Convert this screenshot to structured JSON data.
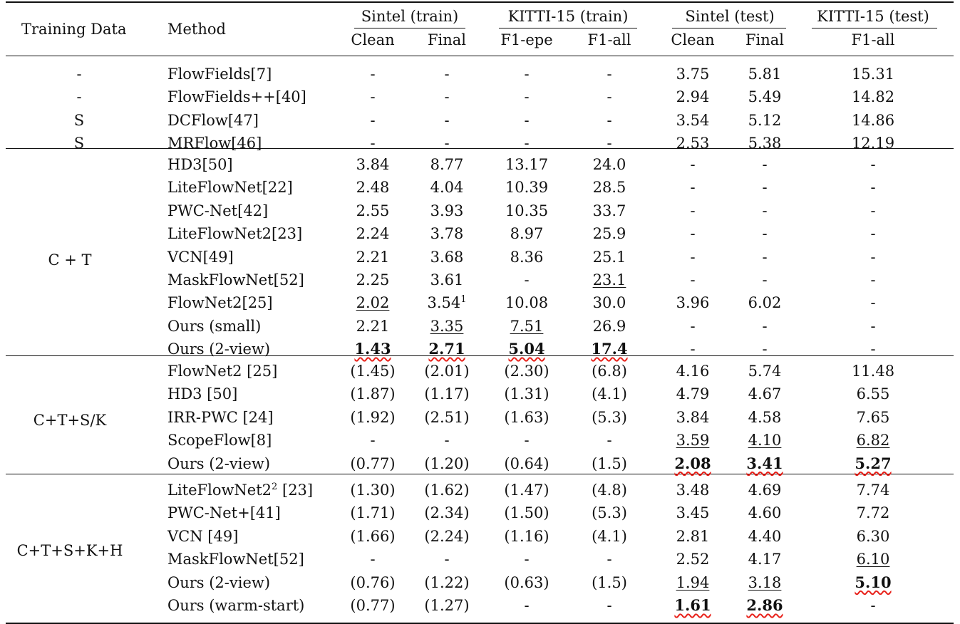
{
  "header": {
    "training_data": "Training Data",
    "method": "Method",
    "groups": [
      {
        "label": "Sintel (train)",
        "subs": [
          "Clean",
          "Final"
        ]
      },
      {
        "label": "KITTI-15 (train)",
        "subs": [
          "F1-epe",
          "F1-all"
        ]
      },
      {
        "label": "Sintel (test)",
        "subs": [
          "Clean",
          "Final"
        ]
      },
      {
        "label": "KITTI-15 (test)",
        "subs": [
          "F1-all"
        ]
      }
    ]
  },
  "sections": [
    {
      "rows": [
        {
          "td": "-",
          "method": "FlowFields[7]",
          "v": [
            "-",
            "-",
            "-",
            "-",
            "3.75",
            "5.81",
            "15.31"
          ]
        },
        {
          "td": "-",
          "method": "FlowFields++[40]",
          "v": [
            "-",
            "-",
            "-",
            "-",
            "2.94",
            "5.49",
            "14.82"
          ]
        },
        {
          "td": "S",
          "method": "DCFlow[47]",
          "v": [
            "-",
            "-",
            "-",
            "-",
            "3.54",
            "5.12",
            "14.86"
          ]
        },
        {
          "td": "S",
          "method": "MRFlow[46]",
          "v": [
            "-",
            "-",
            "-",
            "-",
            "2.53",
            "5.38",
            "12.19"
          ]
        }
      ]
    },
    {
      "label": "C + T",
      "rows": [
        {
          "method": "HD3[50]",
          "v": [
            "3.84",
            "8.77",
            "13.17",
            "24.0",
            "-",
            "-",
            "-"
          ]
        },
        {
          "method": "LiteFlowNet[22]",
          "v": [
            "2.48",
            "4.04",
            "10.39",
            "28.5",
            "-",
            "-",
            "-"
          ]
        },
        {
          "method": "PWC-Net[42]",
          "v": [
            "2.55",
            "3.93",
            "10.35",
            "33.7",
            "-",
            "-",
            "-"
          ]
        },
        {
          "method": "LiteFlowNet2[23]",
          "v": [
            "2.24",
            "3.78",
            "8.97",
            "25.9",
            "-",
            "-",
            "-"
          ]
        },
        {
          "method": "VCN[49]",
          "v": [
            "2.21",
            "3.68",
            "8.36",
            "25.1",
            "-",
            "-",
            "-"
          ]
        },
        {
          "method": "MaskFlowNet[52]",
          "v": [
            "2.25",
            "3.61",
            "-",
            "23.1",
            "-",
            "-",
            "-"
          ],
          "u": [
            3
          ]
        },
        {
          "method": "FlowNet2[25]",
          "v": [
            "2.02",
            "3.54",
            "10.08",
            "30.0",
            "3.96",
            "6.02",
            "-"
          ],
          "u": [
            0
          ],
          "sup": {
            "1": "1"
          }
        },
        {
          "method": "Ours (small)",
          "v": [
            "2.21",
            "3.35",
            "7.51",
            "26.9",
            "-",
            "-",
            "-"
          ],
          "u": [
            1,
            2
          ]
        },
        {
          "method": "Ours (2-view)",
          "v": [
            "1.43",
            "2.71",
            "5.04",
            "17.4",
            "-",
            "-",
            "-"
          ],
          "b": [
            0,
            1,
            2,
            3
          ],
          "red": [
            0,
            1,
            2,
            3
          ]
        }
      ]
    },
    {
      "label": "C+T+S/K",
      "rows": [
        {
          "method": "FlowNet2 [25]",
          "v": [
            "(1.45)",
            "(2.01)",
            "(2.30)",
            "(6.8)",
            "4.16",
            "5.74",
            "11.48"
          ]
        },
        {
          "method": "HD3 [50]",
          "v": [
            "(1.87)",
            "(1.17)",
            "(1.31)",
            "(4.1)",
            "4.79",
            "4.67",
            "6.55"
          ]
        },
        {
          "method": "IRR-PWC [24]",
          "v": [
            "(1.92)",
            "(2.51)",
            "(1.63)",
            "(5.3)",
            "3.84",
            "4.58",
            "7.65"
          ]
        },
        {
          "method": "ScopeFlow[8]",
          "v": [
            "-",
            "-",
            "-",
            "-",
            "3.59",
            "4.10",
            "6.82"
          ],
          "u": [
            4,
            5,
            6
          ]
        },
        {
          "method": "Ours (2-view)",
          "v": [
            "(0.77)",
            "(1.20)",
            "(0.64)",
            "(1.5)",
            "2.08",
            "3.41",
            "5.27"
          ],
          "b": [
            4,
            5,
            6
          ],
          "red": [
            4,
            5,
            6
          ]
        }
      ]
    },
    {
      "label": "C+T+S+K+H",
      "rows": [
        {
          "method": "LiteFlowNet2",
          "method_sup": "2",
          "method_tail": " [23]",
          "v": [
            "(1.30)",
            "(1.62)",
            "(1.47)",
            "(4.8)",
            "3.48",
            "4.69",
            "7.74"
          ]
        },
        {
          "method": "PWC-Net+[41]",
          "v": [
            "(1.71)",
            "(2.34)",
            "(1.50)",
            "(5.3)",
            "3.45",
            "4.60",
            "7.72"
          ]
        },
        {
          "method": "VCN [49]",
          "v": [
            "(1.66)",
            "(2.24)",
            "(1.16)",
            "(4.1)",
            "2.81",
            "4.40",
            "6.30"
          ]
        },
        {
          "method": "MaskFlowNet[52]",
          "v": [
            "-",
            "-",
            "-",
            "-",
            "2.52",
            "4.17",
            "6.10"
          ],
          "u": [
            6
          ]
        },
        {
          "method": "Ours (2-view)",
          "v": [
            "(0.76)",
            "(1.22)",
            "(0.63)",
            "(1.5)",
            "1.94",
            "3.18",
            "5.10"
          ],
          "u": [
            4,
            5
          ],
          "b": [
            6
          ],
          "red": [
            6
          ]
        },
        {
          "method": "Ours (warm-start)",
          "v": [
            "(0.77)",
            "(1.27)",
            "-",
            "-",
            "1.61",
            "2.86",
            "-"
          ],
          "b": [
            4,
            5
          ],
          "red": [
            4,
            5
          ]
        }
      ]
    }
  ]
}
